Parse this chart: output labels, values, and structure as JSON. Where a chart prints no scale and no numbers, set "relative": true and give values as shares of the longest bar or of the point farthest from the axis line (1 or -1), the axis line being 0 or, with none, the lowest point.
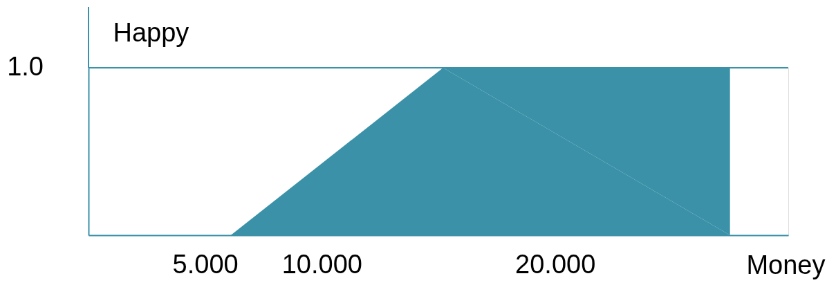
{
  "chart_data": {
    "type": "area",
    "xlabel": "Money",
    "ylabel": "Happy",
    "relative": true,
    "x": [
      6.1,
      15.2,
      27.5
    ],
    "series": [
      {
        "color": "#3a91a8",
        "values": [
          0,
          1,
          1
        ]
      }
    ],
    "xlim": [
      0,
      30
    ],
    "xticks": [
      {
        "value": 5,
        "label": "5.000"
      },
      {
        "value": 10,
        "label": "10.000"
      },
      {
        "value": 20,
        "label": "20.000"
      }
    ],
    "ref_lines": [
      {
        "axis": "y",
        "value": 1,
        "label": "1.0",
        "color": "#3a91a8"
      }
    ],
    "grid": false
  }
}
